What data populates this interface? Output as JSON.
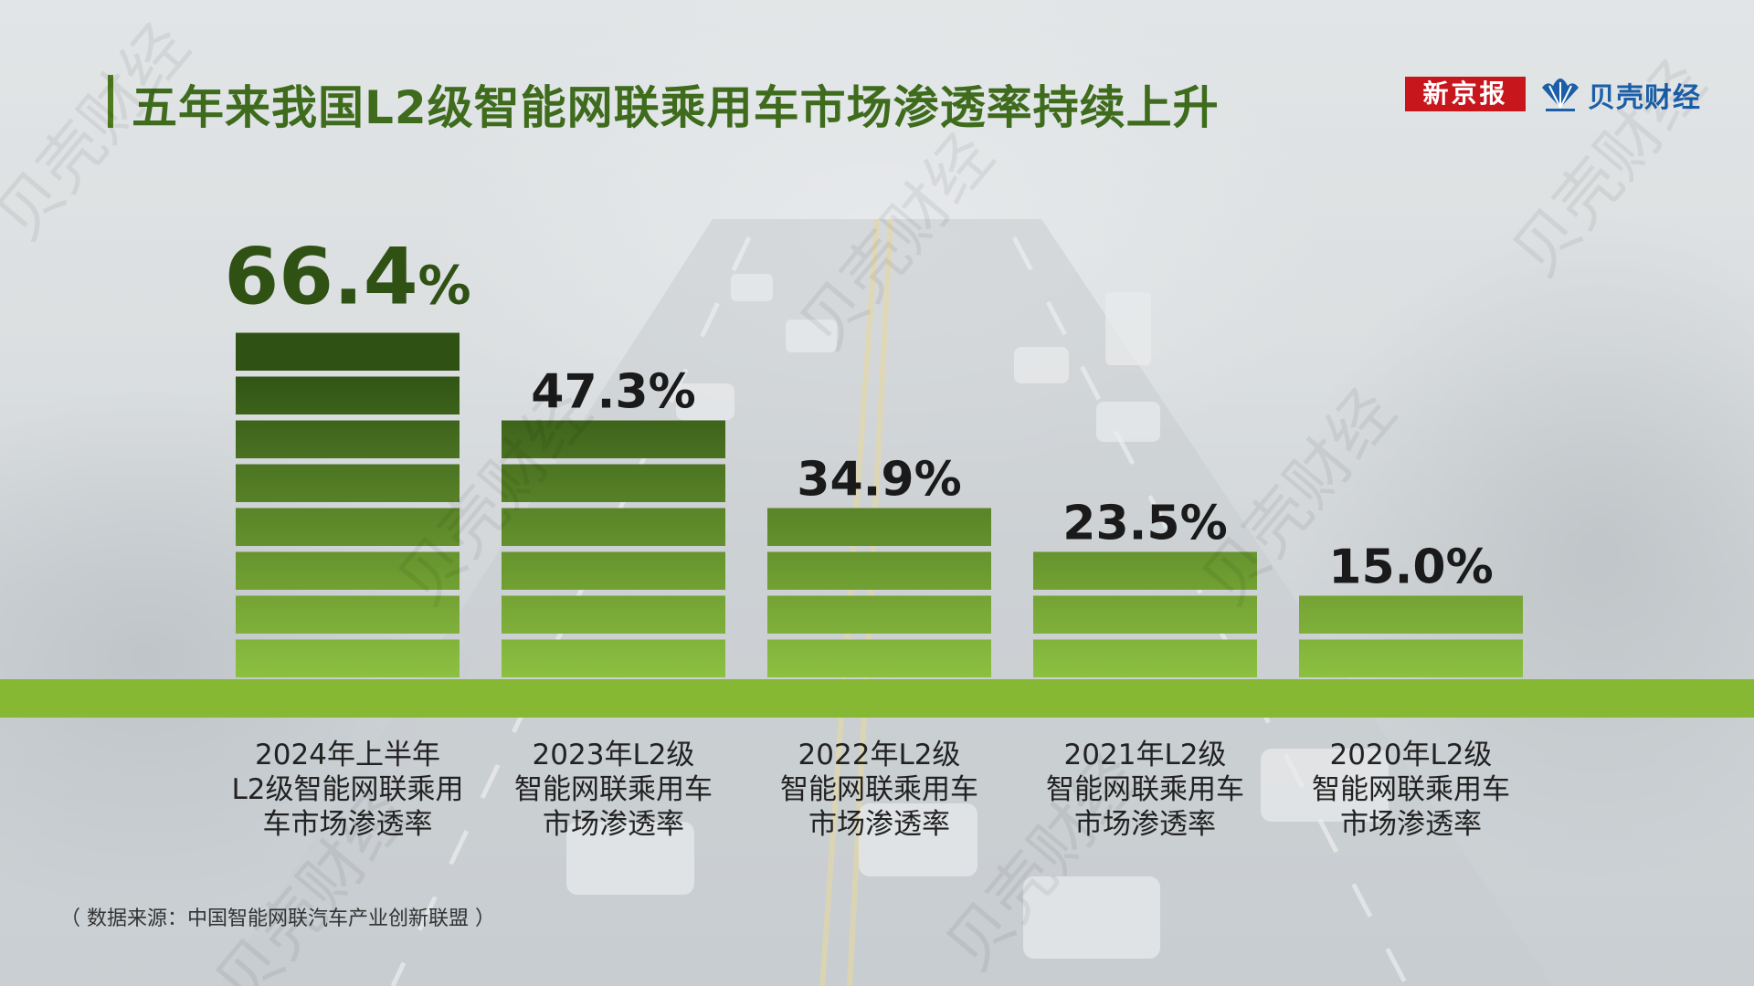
{
  "title": "五年来我国L2级智能网联乘用车市场渗透率持续上升",
  "logos": {
    "xinjingbao": "新京报",
    "beike": "贝壳财经",
    "watermark": "贝壳财经"
  },
  "source": "（ 数据来源：中国智能网联汽车产业创新联盟 ）",
  "colors": {
    "title": "#3e6b1c",
    "baseline": "#86b834",
    "bar_top": "#2f5214",
    "bar_bottom": "#8cc040"
  },
  "chart_data": {
    "type": "bar",
    "categories": [
      "2024年上半年\nL2级智能网联乘用\n车市场渗透率",
      "2023年L2级\n智能网联乘用车\n市场渗透率",
      "2022年L2级\n智能网联乘用车\n市场渗透率",
      "2021年L2级\n智能网联乘用车\n市场渗透率",
      "2020年L2级\n智能网联乘用车\n市场渗透率"
    ],
    "values": [
      66.4,
      47.3,
      34.9,
      23.5,
      15.0
    ],
    "value_labels": [
      "66.4",
      "47.3",
      "34.9",
      "23.5",
      "15.0"
    ],
    "unit": "%",
    "ylim": [
      0,
      70
    ],
    "grid": false,
    "legend": "none"
  }
}
